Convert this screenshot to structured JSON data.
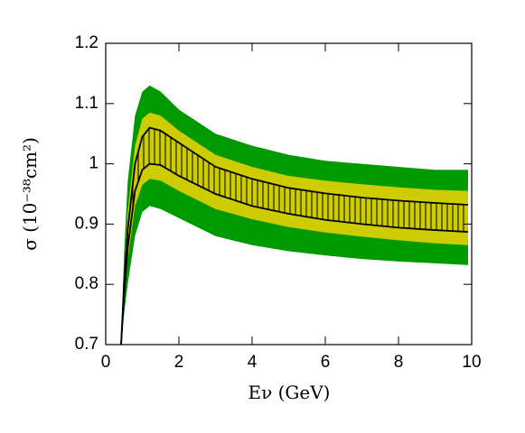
{
  "chart_data": {
    "type": "band",
    "xlabel": "Eν (GeV)",
    "ylabel": "σ (10⁻³⁸cm²)",
    "x": [
      0.42,
      0.5,
      0.6,
      0.8,
      1.0,
      1.2,
      1.5,
      2,
      3,
      4,
      5,
      6,
      7,
      8,
      9,
      9.9
    ],
    "bands": [
      {
        "color": "#009a00",
        "hatch": false,
        "upper": [
          0.7,
          0.85,
          0.97,
          1.08,
          1.12,
          1.13,
          1.12,
          1.09,
          1.05,
          1.03,
          1.015,
          1.005,
          1.0,
          0.995,
          0.99,
          0.99
        ],
        "lower": [
          0.7,
          0.75,
          0.8,
          0.88,
          0.92,
          0.93,
          0.925,
          0.91,
          0.88,
          0.865,
          0.855,
          0.848,
          0.842,
          0.838,
          0.835,
          0.832
        ]
      },
      {
        "color": "#cccc00",
        "hatch": false,
        "upper": [
          0.7,
          0.82,
          0.92,
          1.03,
          1.075,
          1.085,
          1.08,
          1.055,
          1.015,
          0.995,
          0.98,
          0.972,
          0.966,
          0.961,
          0.957,
          0.955
        ],
        "lower": [
          0.7,
          0.77,
          0.84,
          0.93,
          0.965,
          0.975,
          0.972,
          0.955,
          0.925,
          0.908,
          0.895,
          0.886,
          0.879,
          0.873,
          0.868,
          0.865
        ]
      },
      {
        "color": "#000000",
        "hatch": true,
        "upper": [
          0.7,
          0.8,
          0.89,
          1.0,
          1.045,
          1.06,
          1.055,
          1.035,
          0.995,
          0.975,
          0.96,
          0.951,
          0.944,
          0.939,
          0.935,
          0.932
        ],
        "lower": [
          0.7,
          0.78,
          0.86,
          0.955,
          0.99,
          1.0,
          0.998,
          0.98,
          0.95,
          0.93,
          0.917,
          0.907,
          0.9,
          0.894,
          0.89,
          0.887
        ]
      }
    ],
    "series": [
      {
        "color": "#000000",
        "values": [
          0.7,
          0.8,
          0.89,
          1.0,
          1.045,
          1.06,
          1.055,
          1.035,
          0.995,
          0.975,
          0.96,
          0.951,
          0.944,
          0.939,
          0.935,
          0.932
        ]
      },
      {
        "color": "#000000",
        "values": [
          0.7,
          0.78,
          0.86,
          0.955,
          0.99,
          1.0,
          0.998,
          0.98,
          0.95,
          0.93,
          0.917,
          0.907,
          0.9,
          0.894,
          0.89,
          0.887
        ]
      }
    ],
    "xlim": [
      0,
      10
    ],
    "ylim": [
      0.7,
      1.2
    ],
    "xticks": [
      0,
      2,
      4,
      6,
      8,
      10
    ],
    "yticks": [
      0.7,
      0.8,
      0.9,
      1,
      1.1,
      1.2
    ],
    "grid": false
  }
}
